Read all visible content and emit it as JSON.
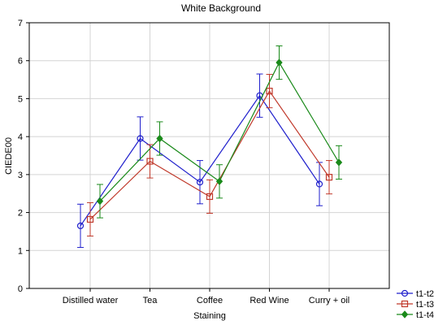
{
  "chart_data": {
    "type": "line",
    "title": "White Background",
    "xlabel": "Staining",
    "ylabel": "CIEDE00",
    "ylim": [
      0,
      7
    ],
    "yticks": [
      0,
      1,
      2,
      3,
      4,
      5,
      6,
      7
    ],
    "grid": true,
    "legend_position": "bottom-right",
    "categories": [
      "Distilled water",
      "Tea",
      "Coffee",
      "Red Wine",
      "Curry + oil"
    ],
    "series": [
      {
        "name": "t1-t2",
        "color": "#1f1fcc",
        "marker": "circle",
        "values": [
          1.65,
          3.95,
          2.8,
          5.08,
          2.75
        ],
        "error_low": [
          1.08,
          3.38,
          2.23,
          4.51,
          2.18
        ],
        "error_high": [
          2.22,
          4.52,
          3.37,
          5.65,
          3.32
        ]
      },
      {
        "name": "t1-t3",
        "color": "#c0392b",
        "marker": "square",
        "values": [
          1.82,
          3.35,
          2.42,
          5.2,
          2.93
        ],
        "error_low": [
          1.38,
          2.91,
          1.98,
          4.76,
          2.49
        ],
        "error_high": [
          2.26,
          3.79,
          2.86,
          5.64,
          3.37
        ]
      },
      {
        "name": "t1-t4",
        "color": "#1a8a1a",
        "marker": "diamond",
        "values": [
          2.3,
          3.95,
          2.82,
          5.95,
          3.32
        ],
        "error_low": [
          1.86,
          3.51,
          2.38,
          5.51,
          2.88
        ],
        "error_high": [
          2.74,
          4.39,
          3.26,
          6.39,
          3.76
        ]
      }
    ]
  }
}
